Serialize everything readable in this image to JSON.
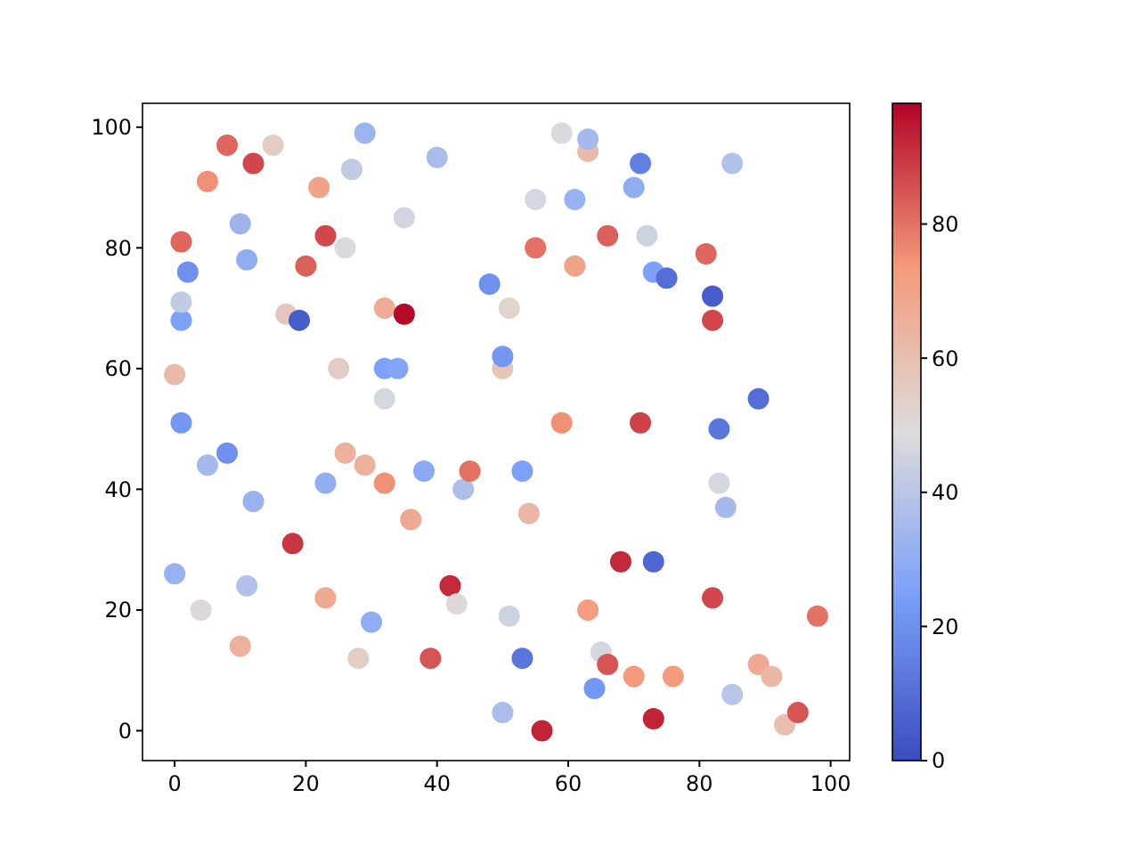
{
  "chart_data": {
    "type": "scatter",
    "marker": "circle",
    "xlim": [
      -4.9,
      102.9
    ],
    "ylim": [
      -4.95,
      103.95
    ],
    "xticks": [
      0,
      20,
      40,
      60,
      80,
      100
    ],
    "yticks": [
      0,
      20,
      40,
      60,
      80,
      100
    ],
    "clim": [
      0,
      98
    ],
    "cticks": [
      0,
      20,
      40,
      60,
      80
    ],
    "x": [
      0,
      0,
      1,
      1,
      1,
      1,
      2,
      4,
      5,
      5,
      8,
      8,
      10,
      10,
      11,
      11,
      12,
      12,
      15,
      17,
      18,
      19,
      20,
      22,
      23,
      23,
      23,
      25,
      26,
      26,
      27,
      28,
      29,
      29,
      30,
      32,
      32,
      32,
      32,
      34,
      35,
      35,
      36,
      38,
      39,
      40,
      42,
      43,
      44,
      45,
      48,
      50,
      50,
      50,
      51,
      51,
      53,
      53,
      54,
      55,
      55,
      56,
      59,
      59,
      61,
      61,
      63,
      63,
      63,
      64,
      65,
      66,
      66,
      68,
      70,
      70,
      71,
      71,
      72,
      73,
      73,
      75,
      73,
      76,
      81,
      82,
      82,
      82,
      83,
      83,
      84,
      85,
      85,
      89,
      89,
      91,
      93,
      95,
      98
    ],
    "values": [
      26,
      59,
      51,
      68,
      71,
      81,
      76,
      20,
      44,
      91,
      46,
      97,
      14,
      84,
      24,
      78,
      38,
      94,
      97,
      69,
      31,
      68,
      77,
      90,
      22,
      41,
      82,
      60,
      46,
      80,
      93,
      12,
      44,
      99,
      18,
      41,
      55,
      60,
      70,
      60,
      69,
      85,
      35,
      43,
      12,
      95,
      24,
      21,
      40,
      43,
      74,
      3,
      60,
      62,
      19,
      70,
      12,
      43,
      36,
      88,
      80,
      0,
      51,
      99,
      88,
      77,
      96,
      98,
      20,
      7,
      13,
      11,
      82,
      28,
      9,
      90,
      51,
      94,
      82,
      28,
      76,
      75,
      2,
      9,
      79,
      72,
      68,
      22,
      50,
      41,
      37,
      94,
      6,
      55,
      11,
      9,
      1,
      3,
      19
    ],
    "cvalues": [
      32,
      62,
      22,
      25,
      42,
      82,
      20,
      50,
      35,
      75,
      20,
      82,
      65,
      33,
      38,
      30,
      32,
      87,
      55,
      57,
      90,
      5,
      83,
      70,
      68,
      30,
      87,
      55,
      65,
      48,
      42,
      55,
      65,
      33,
      30,
      75,
      47,
      25,
      67,
      27,
      97,
      46,
      68,
      28,
      85,
      36,
      92,
      50,
      37,
      80,
      20,
      36,
      58,
      22,
      45,
      52,
      12,
      25,
      63,
      47,
      80,
      93,
      75,
      48,
      32,
      70,
      62,
      35,
      72,
      22,
      47,
      85,
      83,
      92,
      73,
      30,
      88,
      15,
      45,
      8,
      25,
      10,
      93,
      73,
      82,
      5,
      87,
      87,
      12,
      47,
      35,
      38,
      40,
      10,
      68,
      63,
      60,
      85,
      80
    ]
  }
}
